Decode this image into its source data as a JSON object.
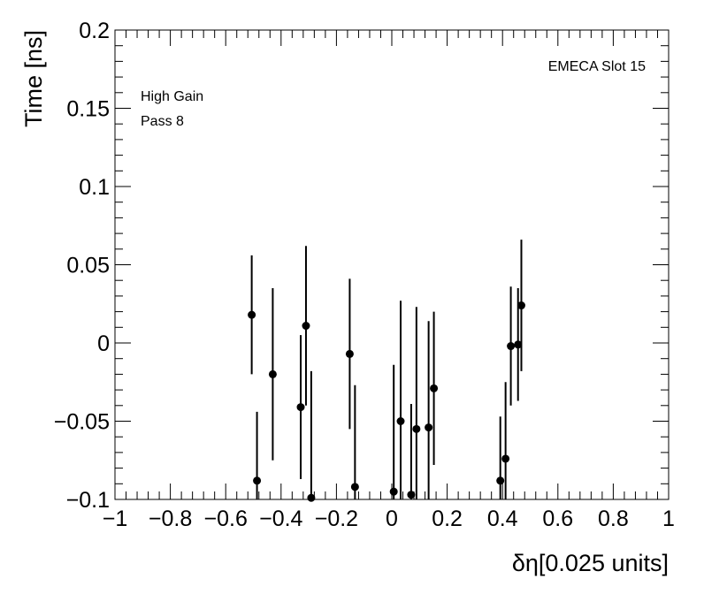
{
  "chart_data": {
    "type": "scatter",
    "title": "",
    "xlabel": "δη[0.025 units]",
    "ylabel": "Time [ns]",
    "xlim": [
      -1,
      1
    ],
    "ylim": [
      -0.1,
      0.2
    ],
    "grid": false,
    "x_ticks": [
      -1,
      -0.8,
      -0.6,
      -0.4,
      -0.2,
      0,
      0.2,
      0.4,
      0.6,
      0.8,
      1
    ],
    "x_tick_labels": [
      "−1",
      "−0.8",
      "−0.6",
      "−0.4",
      "−0.2",
      "0",
      "0.2",
      "0.4",
      "0.6",
      "0.8",
      "1"
    ],
    "y_ticks": [
      -0.1,
      -0.05,
      0,
      0.05,
      0.1,
      0.15,
      0.2
    ],
    "y_tick_labels": [
      "−0.1",
      "−0.05",
      "0",
      "0.05",
      "0.1",
      "0.15",
      "0.2"
    ],
    "annotations": {
      "slot": "EMECA Slot 15",
      "gain": "High Gain",
      "pass": "Pass 8"
    },
    "points": [
      {
        "x": -0.506,
        "y": 0.018,
        "err": 0.038
      },
      {
        "x": -0.487,
        "y": -0.088,
        "err": 0.044
      },
      {
        "x": -0.43,
        "y": -0.02,
        "err": 0.055
      },
      {
        "x": -0.329,
        "y": -0.041,
        "err": 0.046
      },
      {
        "x": -0.31,
        "y": 0.011,
        "err": 0.051
      },
      {
        "x": -0.291,
        "y": -0.099,
        "err": 0.081
      },
      {
        "x": -0.152,
        "y": -0.007,
        "err": 0.048
      },
      {
        "x": -0.133,
        "y": -0.092,
        "err": 0.065
      },
      {
        "x": 0.007,
        "y": -0.095,
        "err": 0.081
      },
      {
        "x": 0.032,
        "y": -0.05,
        "err": 0.077
      },
      {
        "x": 0.07,
        "y": -0.097,
        "err": 0.058
      },
      {
        "x": 0.089,
        "y": -0.055,
        "err": 0.078
      },
      {
        "x": 0.133,
        "y": -0.054,
        "err": 0.068
      },
      {
        "x": 0.152,
        "y": -0.029,
        "err": 0.049
      },
      {
        "x": 0.392,
        "y": -0.088,
        "err": 0.041
      },
      {
        "x": 0.411,
        "y": -0.074,
        "err": 0.049
      },
      {
        "x": 0.43,
        "y": -0.002,
        "err": 0.038
      },
      {
        "x": 0.456,
        "y": -0.001,
        "err": 0.036
      },
      {
        "x": 0.468,
        "y": 0.024,
        "err": 0.042
      }
    ]
  }
}
